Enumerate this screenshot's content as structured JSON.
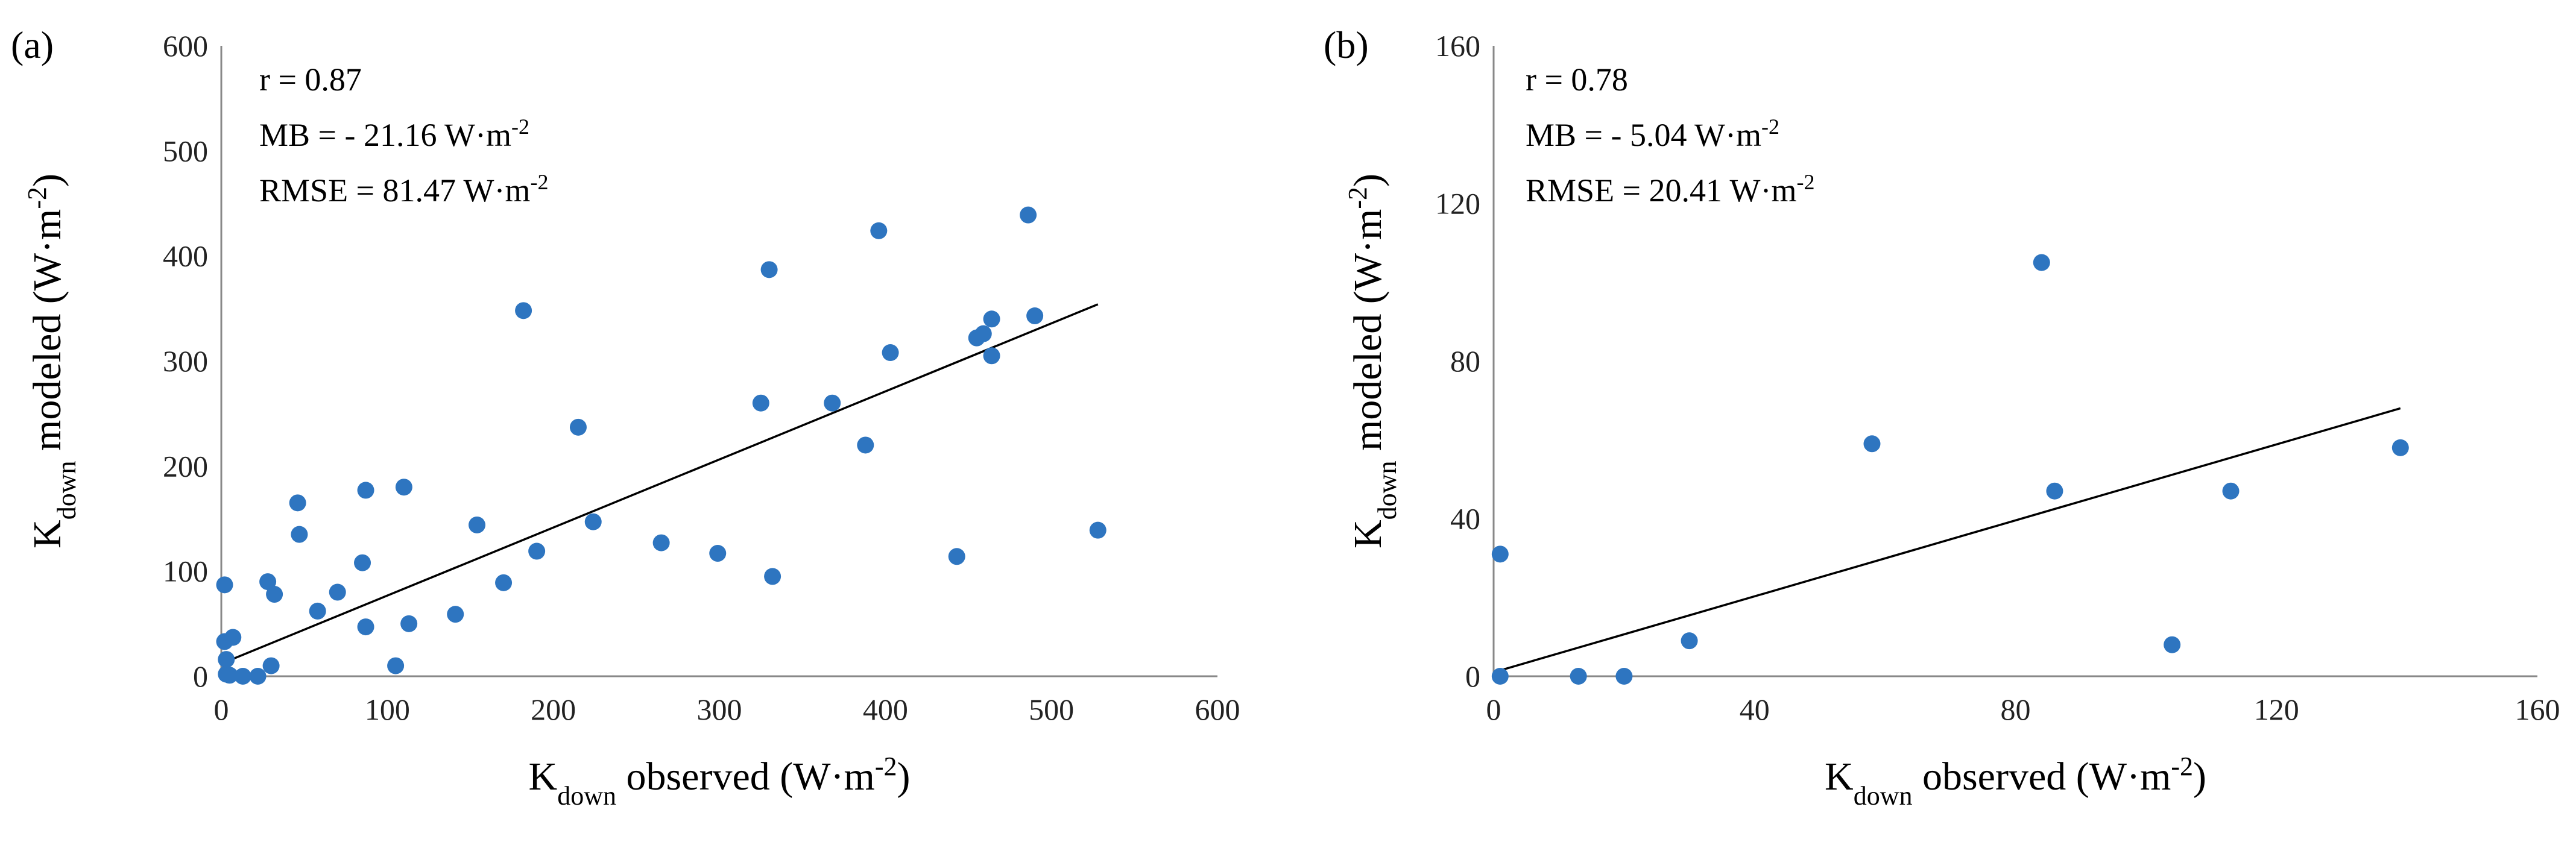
{
  "chart_data": [
    {
      "type": "scatter",
      "panel_label": "(a)",
      "xlabel": {
        "main": "K",
        "sub": "down",
        "rest": " observed (W·m",
        "sup": "-2",
        "close": ")"
      },
      "ylabel": {
        "main": "K",
        "sub": "down",
        "rest": " modeled (W·m",
        "sup": "-2",
        "close": ")"
      },
      "xlim": [
        0,
        600
      ],
      "ylim": [
        0,
        600
      ],
      "xticks": [
        "0",
        "100",
        "200",
        "300",
        "400",
        "500",
        "600"
      ],
      "yticks": [
        "0",
        "100",
        "200",
        "300",
        "400",
        "500",
        "600"
      ],
      "stats": [
        {
          "text": "r = 0.87",
          "sup": ""
        },
        {
          "text": "MB =  - 21.16 W·m",
          "sup": "-2"
        },
        {
          "text": "RMSE = 81.47 W·m",
          "sup": "-2"
        }
      ],
      "trendline": {
        "x": [
          0,
          528
        ],
        "y": [
          12,
          354
        ]
      },
      "points": [
        [
          2,
          87
        ],
        [
          2,
          33
        ],
        [
          3,
          16
        ],
        [
          3,
          2
        ],
        [
          5,
          1
        ],
        [
          7,
          37
        ],
        [
          13,
          0
        ],
        [
          22,
          0
        ],
        [
          28,
          90
        ],
        [
          30,
          10
        ],
        [
          32,
          78
        ],
        [
          46,
          165
        ],
        [
          47,
          135
        ],
        [
          58,
          62
        ],
        [
          70,
          80
        ],
        [
          85,
          108
        ],
        [
          87,
          177
        ],
        [
          87,
          47
        ],
        [
          105,
          10
        ],
        [
          110,
          180
        ],
        [
          113,
          50
        ],
        [
          141,
          59
        ],
        [
          154,
          144
        ],
        [
          170,
          89
        ],
        [
          182,
          348
        ],
        [
          190,
          119
        ],
        [
          215,
          237
        ],
        [
          224,
          147
        ],
        [
          265,
          127
        ],
        [
          299,
          117
        ],
        [
          325,
          260
        ],
        [
          330,
          387
        ],
        [
          332,
          95
        ],
        [
          368,
          260
        ],
        [
          388,
          220
        ],
        [
          396,
          424
        ],
        [
          403,
          308
        ],
        [
          443,
          114
        ],
        [
          455,
          322
        ],
        [
          459,
          326
        ],
        [
          464,
          340
        ],
        [
          464,
          305
        ],
        [
          486,
          439
        ],
        [
          490,
          343
        ],
        [
          528,
          139
        ]
      ],
      "marker_color": "#2e75c0",
      "line_color": "#000000"
    },
    {
      "type": "scatter",
      "panel_label": "(b)",
      "xlabel": {
        "main": "K",
        "sub": "down",
        "rest": " observed (W·m",
        "sup": "-2",
        "close": ")"
      },
      "ylabel": {
        "main": "K",
        "sub": "down",
        "rest": " modeled (W·m",
        "sup": "-2",
        "close": ")"
      },
      "xlim": [
        0,
        160
      ],
      "ylim": [
        0,
        160
      ],
      "xticks": [
        "0",
        "40",
        "80",
        "120",
        "160"
      ],
      "yticks": [
        "0",
        "40",
        "80",
        "120",
        "160"
      ],
      "stats": [
        {
          "text": "r = 0.78",
          "sup": ""
        },
        {
          "text": "MB =  - 5.04 W·m",
          "sup": "-2"
        },
        {
          "text": "RMSE = 20.41 W·m",
          "sup": "-2"
        }
      ],
      "trendline": {
        "x": [
          0,
          139
        ],
        "y": [
          1,
          68
        ]
      },
      "points": [
        [
          1,
          31
        ],
        [
          1,
          0
        ],
        [
          13,
          0
        ],
        [
          20,
          0
        ],
        [
          30,
          9
        ],
        [
          58,
          59
        ],
        [
          84,
          105
        ],
        [
          86,
          47
        ],
        [
          104,
          8
        ],
        [
          113,
          47
        ],
        [
          139,
          58
        ]
      ],
      "marker_color": "#2e75c0",
      "line_color": "#000000"
    }
  ]
}
